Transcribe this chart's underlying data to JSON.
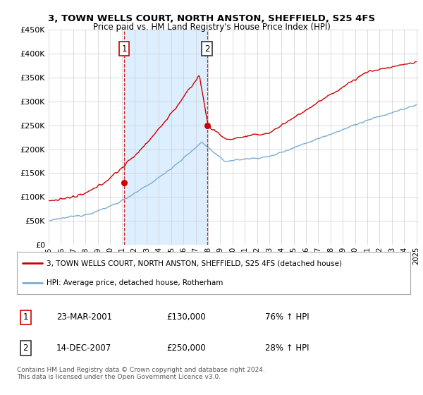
{
  "title": "3, TOWN WELLS COURT, NORTH ANSTON, SHEFFIELD, S25 4FS",
  "subtitle": "Price paid vs. HM Land Registry's House Price Index (HPI)",
  "ylim": [
    0,
    450000
  ],
  "yticks": [
    0,
    50000,
    100000,
    150000,
    200000,
    250000,
    300000,
    350000,
    400000,
    450000
  ],
  "sale1_year": 2001,
  "sale1_month": 3,
  "sale1_price": 130000,
  "sale2_year": 2007,
  "sale2_month": 12,
  "sale2_price": 250000,
  "red_line_color": "#cc0000",
  "blue_line_color": "#7aadd4",
  "shade_color": "#ddeeff",
  "vline_color": "#cc0000",
  "legend_entries": [
    "3, TOWN WELLS COURT, NORTH ANSTON, SHEFFIELD, S25 4FS (detached house)",
    "HPI: Average price, detached house, Rotherham"
  ],
  "table_rows": [
    {
      "num": "1",
      "date": "23-MAR-2001",
      "price": "£130,000",
      "hpi": "76% ↑ HPI",
      "box_color": "#cc0000"
    },
    {
      "num": "2",
      "date": "14-DEC-2007",
      "price": "£250,000",
      "hpi": "28% ↑ HPI",
      "box_color": "#333333"
    }
  ],
  "footnote": "Contains HM Land Registry data © Crown copyright and database right 2024.\nThis data is licensed under the Open Government Licence v3.0.",
  "background_color": "#ffffff",
  "grid_color": "#cccccc"
}
